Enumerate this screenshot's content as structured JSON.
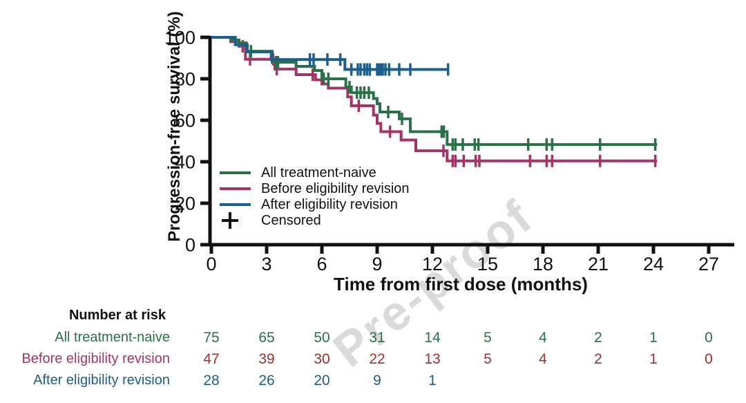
{
  "watermark": {
    "text": "Pre-proof"
  },
  "colors": {
    "all_naive": "#2a7148",
    "before": "#a23568",
    "after": "#1c5f8c",
    "risk_red": "#9e3030",
    "text": "#111111"
  },
  "chart_data": {
    "type": "line",
    "subtype": "kaplan-meier-step",
    "title": "",
    "xlabel": "Time from first dose (months)",
    "ylabel": "Progression-free survival (%)",
    "xlim": [
      0,
      28.5
    ],
    "ylim": [
      0,
      100
    ],
    "x_ticks": [
      0,
      3,
      6,
      9,
      12,
      15,
      18,
      21,
      24,
      27
    ],
    "y_ticks": [
      100,
      80,
      60,
      40,
      20,
      0
    ],
    "grid": false,
    "legend_position": "inside-lower-left",
    "series": [
      {
        "name": "All treatment-naive",
        "color_key": "all_naive",
        "end_time": 24.2,
        "steps": [
          [
            0,
            100
          ],
          [
            1.05,
            98.7
          ],
          [
            1.5,
            97.3
          ],
          [
            1.9,
            93.3
          ],
          [
            3.3,
            88
          ],
          [
            4.6,
            86
          ],
          [
            5.6,
            84
          ],
          [
            6.0,
            80
          ],
          [
            7.3,
            76
          ],
          [
            7.6,
            73.3
          ],
          [
            8.8,
            70.5
          ],
          [
            9.0,
            68
          ],
          [
            9.15,
            64
          ],
          [
            10.2,
            60.7
          ],
          [
            10.8,
            54.5
          ],
          [
            12.8,
            48.3
          ]
        ],
        "censors": [
          [
            2.15,
            93.3
          ],
          [
            3.5,
            88
          ],
          [
            3.62,
            88
          ],
          [
            6.1,
            80
          ],
          [
            6.35,
            80
          ],
          [
            7.5,
            76
          ],
          [
            7.9,
            73.3
          ],
          [
            8.1,
            73.3
          ],
          [
            8.3,
            73.3
          ],
          [
            8.55,
            73.3
          ],
          [
            9.6,
            64
          ],
          [
            10.35,
            60.7
          ],
          [
            12.5,
            54.5
          ],
          [
            12.62,
            54.5
          ],
          [
            13.1,
            48.3
          ],
          [
            13.25,
            48.3
          ],
          [
            13.65,
            48.3
          ],
          [
            14.3,
            48.3
          ],
          [
            14.5,
            48.3
          ],
          [
            17.2,
            48.3
          ],
          [
            18.2,
            48.3
          ],
          [
            18.5,
            48.3
          ],
          [
            21.1,
            48.3
          ],
          [
            24.1,
            48.3
          ]
        ]
      },
      {
        "name": "Before eligibility revision",
        "color_key": "before",
        "end_time": 24.2,
        "steps": [
          [
            0,
            100
          ],
          [
            1.05,
            97.9
          ],
          [
            1.5,
            95.7
          ],
          [
            1.85,
            89.4
          ],
          [
            3.45,
            84.7
          ],
          [
            4.6,
            82
          ],
          [
            5.65,
            79.5
          ],
          [
            6.0,
            77.5
          ],
          [
            6.35,
            75.5
          ],
          [
            7.4,
            71.3
          ],
          [
            7.6,
            67
          ],
          [
            8.8,
            62.5
          ],
          [
            9.0,
            58.5
          ],
          [
            9.2,
            54.5
          ],
          [
            10.3,
            50.5
          ],
          [
            11.1,
            45.3
          ],
          [
            12.8,
            40.4
          ]
        ],
        "censors": [
          [
            1.7,
            95.7
          ],
          [
            2.1,
            89.4
          ],
          [
            3.35,
            89.4
          ],
          [
            3.55,
            84.7
          ],
          [
            5.5,
            82
          ],
          [
            8.0,
            67
          ],
          [
            9.7,
            54.5
          ],
          [
            12.6,
            45.3
          ],
          [
            13.1,
            40.4
          ],
          [
            13.25,
            40.4
          ],
          [
            13.7,
            40.4
          ],
          [
            14.35,
            40.4
          ],
          [
            14.55,
            40.4
          ],
          [
            17.3,
            40.4
          ],
          [
            18.2,
            40.4
          ],
          [
            18.5,
            40.4
          ],
          [
            21.1,
            40.4
          ],
          [
            24.1,
            40.4
          ]
        ]
      },
      {
        "name": "After eligibility revision",
        "color_key": "after",
        "end_time": 12.9,
        "steps": [
          [
            0,
            100
          ],
          [
            1.3,
            96.4
          ],
          [
            1.95,
            93
          ],
          [
            3.25,
            89.3
          ],
          [
            7.25,
            84.5
          ]
        ],
        "censors": [
          [
            5.35,
            89.3
          ],
          [
            5.55,
            89.3
          ],
          [
            6.3,
            89.3
          ],
          [
            7.0,
            89.3
          ],
          [
            7.6,
            84.5
          ],
          [
            7.95,
            84.5
          ],
          [
            8.1,
            84.5
          ],
          [
            8.3,
            84.5
          ],
          [
            8.45,
            84.5
          ],
          [
            8.6,
            84.5
          ],
          [
            9.0,
            84.5
          ],
          [
            9.1,
            84.5
          ],
          [
            9.2,
            84.5
          ],
          [
            9.3,
            84.5
          ],
          [
            9.45,
            84.5
          ],
          [
            9.65,
            84.5
          ],
          [
            10.2,
            84.5
          ],
          [
            10.8,
            84.5
          ],
          [
            12.85,
            84.5
          ]
        ]
      }
    ]
  },
  "legend": {
    "items": [
      {
        "label": "All treatment-naive",
        "type": "line",
        "color_key": "all_naive"
      },
      {
        "label": "Before eligibility revision",
        "type": "line",
        "color_key": "before"
      },
      {
        "label": "After eligibility revision",
        "type": "line",
        "color_key": "after"
      },
      {
        "label": "Censored",
        "type": "plus"
      }
    ]
  },
  "risk_table": {
    "header": "Number at risk",
    "rows": [
      {
        "label": "All treatment-naive",
        "label_color_key": "all_naive",
        "value_color_key": "all_naive",
        "values": [
          75,
          65,
          50,
          31,
          14,
          5,
          4,
          2,
          1,
          0
        ]
      },
      {
        "label": "Before eligibility revision",
        "label_color_key": "before",
        "value_color_key": "risk_red",
        "values": [
          47,
          39,
          30,
          22,
          13,
          5,
          4,
          2,
          1,
          0
        ]
      },
      {
        "label": "After eligibility revision",
        "label_color_key": "after",
        "value_color_key": "after",
        "values": [
          28,
          26,
          20,
          9,
          1
        ]
      }
    ]
  }
}
